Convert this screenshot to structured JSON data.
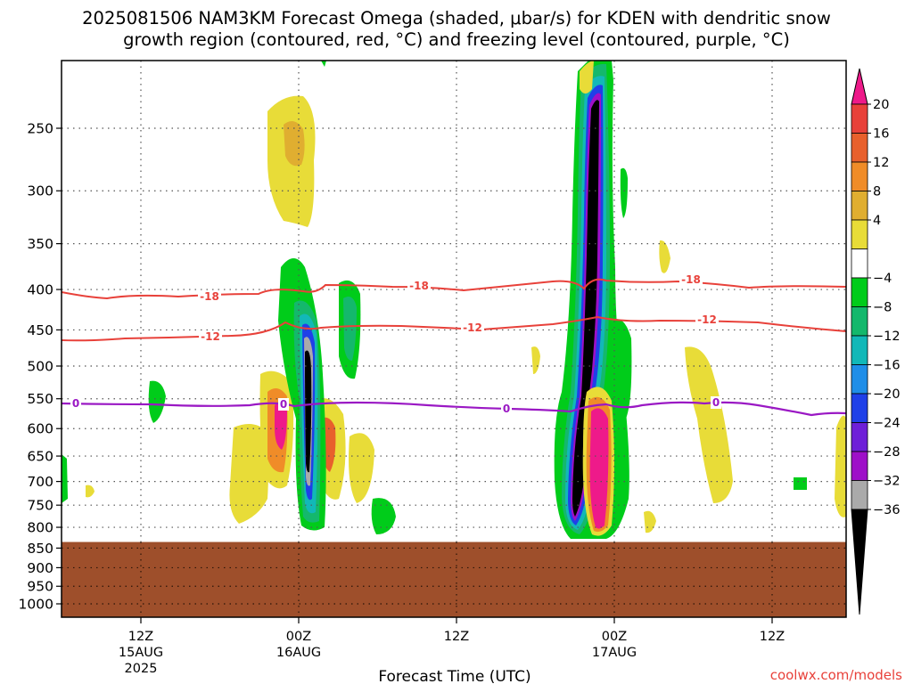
{
  "chart_data": {
    "type": "heatmap",
    "title_line1": "2025081506 NAM3KM Forecast Omega (shaded, μbar/s) for KDEN with dendritic snow",
    "title_line2": "growth region (contoured, red, °C) and freezing level (contoured, purple, °C)",
    "xlabel": "Forecast Time (UTC)",
    "credit": "coolwx.com/models",
    "y_ticks": [
      "250",
      "300",
      "350",
      "400",
      "450",
      "500",
      "550",
      "600",
      "650",
      "700",
      "750",
      "800",
      "850",
      "900",
      "950",
      "1000"
    ],
    "x_ticks": [
      {
        "hour": 12,
        "label": "12Z",
        "sub": "15AUG",
        "sub2": "2025"
      },
      {
        "hour": 24,
        "label": "00Z",
        "sub": "16AUG",
        "sub2": ""
      },
      {
        "hour": 36,
        "label": "12Z",
        "sub": "",
        "sub2": ""
      },
      {
        "hour": 48,
        "label": "00Z",
        "sub": "17AUG",
        "sub2": ""
      },
      {
        "hour": 60,
        "label": "12Z",
        "sub": "",
        "sub2": ""
      }
    ],
    "x_range_hours": [
      6,
      66
    ],
    "y_range_hpa": [
      200,
      1050
    ],
    "ground_level_hpa": 835,
    "colorbar": {
      "labels": [
        "20",
        "16",
        "12",
        "8",
        "4",
        "−4",
        "−8",
        "−12",
        "−16",
        "−20",
        "−24",
        "−28",
        "−32",
        "−36"
      ],
      "colors": [
        "#e8413a",
        "#e8602c",
        "#f08c28",
        "#e0ae30",
        "#e8dc38",
        "#ffffff",
        "#00cc1a",
        "#14b86c",
        "#12b8b8",
        "#1f8ee8",
        "#1f40e8",
        "#6e1fd8",
        "#9e10c8",
        "#aaaaaa"
      ],
      "top_color": "#ee1a8a",
      "bottom_color": "#000000"
    },
    "contours": [
      {
        "label": "-18",
        "color": "#e8413a",
        "hpa": 400
      },
      {
        "label": "-12",
        "color": "#e8413a",
        "hpa": 455
      },
      {
        "label": "0",
        "color": "#9a18c4",
        "hpa": 565
      }
    ]
  }
}
